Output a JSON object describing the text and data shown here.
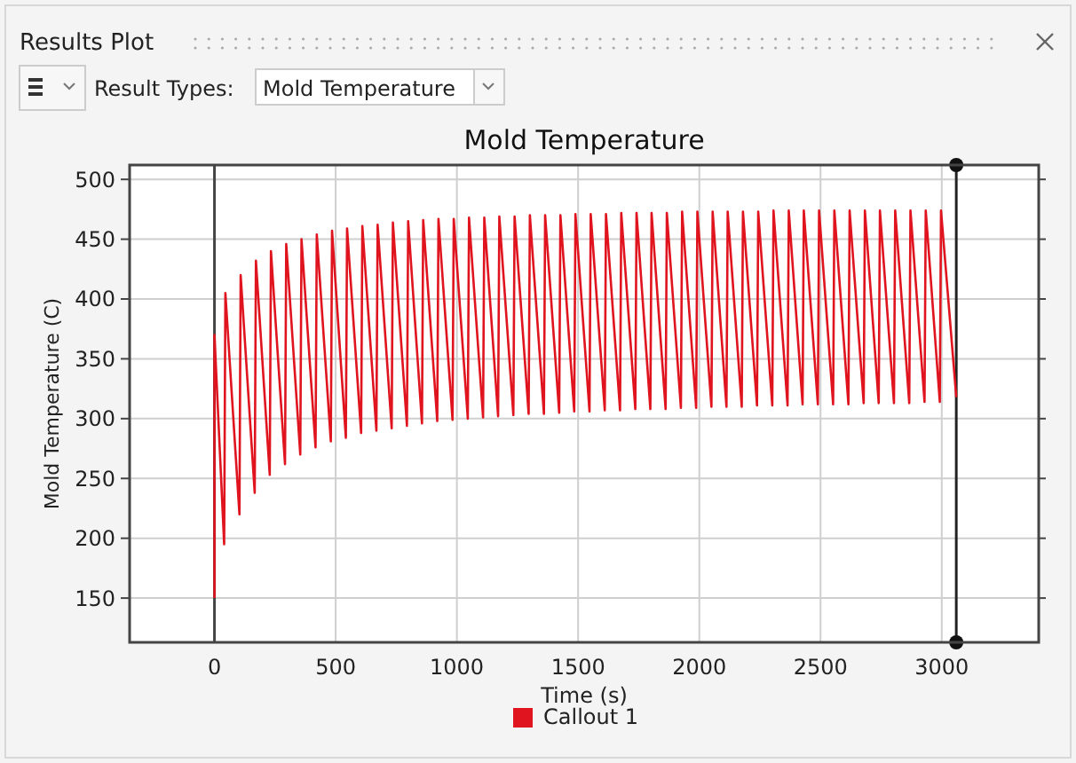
{
  "chart_data": {
    "type": "line",
    "title": "Mold Temperature",
    "xlabel": "Time (s)",
    "ylabel": "Mold Temperature (C)",
    "annotations": [
      "Results Plot",
      "Result Types:",
      "Mold Temperature"
    ],
    "xlim": [
      -350,
      3400
    ],
    "xticks": [
      0,
      500,
      1000,
      1500,
      2000,
      2500,
      3000
    ],
    "ylim": [
      113,
      512
    ],
    "yticks": [
      150,
      200,
      250,
      300,
      350,
      400,
      450,
      500
    ],
    "grid": true,
    "legend": "bottom",
    "line_style": "solid",
    "ref_lines": [
      {
        "axis": "x",
        "value": 0,
        "color": "#444444"
      },
      {
        "axis": "x",
        "value": 3060,
        "color": "#222222"
      }
    ],
    "series": [
      {
        "name": "Callout 1",
        "color": "#e0141e",
        "x": [
          0,
          0,
          40,
          45,
          103,
          108,
          166,
          171,
          228,
          233,
          291,
          296,
          354,
          359,
          417,
          422,
          480,
          485,
          542,
          547,
          605,
          610,
          668,
          673,
          731,
          736,
          794,
          799,
          856,
          861,
          919,
          924,
          982,
          987,
          1045,
          1050,
          1108,
          1113,
          1170,
          1175,
          1233,
          1238,
          1296,
          1301,
          1359,
          1364,
          1422,
          1427,
          1484,
          1489,
          1547,
          1552,
          1610,
          1615,
          1673,
          1678,
          1736,
          1741,
          1798,
          1803,
          1861,
          1866,
          1924,
          1929,
          1987,
          1992,
          2050,
          2055,
          2112,
          2117,
          2175,
          2180,
          2238,
          2243,
          2301,
          2306,
          2364,
          2369,
          2426,
          2431,
          2489,
          2494,
          2552,
          2557,
          2615,
          2620,
          2678,
          2683,
          2740,
          2745,
          2803,
          2808,
          2866,
          2871,
          2929,
          2934,
          2992,
          2997,
          3060
        ],
        "values": [
          150,
          370,
          195,
          405,
          220,
          420,
          238,
          432,
          253,
          440,
          262,
          446,
          270,
          450,
          276,
          454,
          281,
          457,
          284,
          459,
          288,
          461,
          290,
          462,
          292,
          464,
          294,
          465,
          296,
          466,
          298,
          467,
          299,
          467,
          300,
          468,
          301,
          468,
          302,
          469,
          303,
          469,
          304,
          470,
          304,
          470,
          305,
          470,
          306,
          471,
          306,
          471,
          307,
          471,
          307,
          472,
          308,
          472,
          308,
          472,
          308,
          472,
          309,
          473,
          309,
          473,
          310,
          473,
          310,
          473,
          310,
          473,
          311,
          473,
          311,
          474,
          311,
          474,
          312,
          474,
          312,
          474,
          312,
          474,
          312,
          474,
          313,
          474,
          313,
          474,
          313,
          474,
          313,
          474,
          314,
          474,
          314,
          474,
          318
        ]
      }
    ]
  }
}
